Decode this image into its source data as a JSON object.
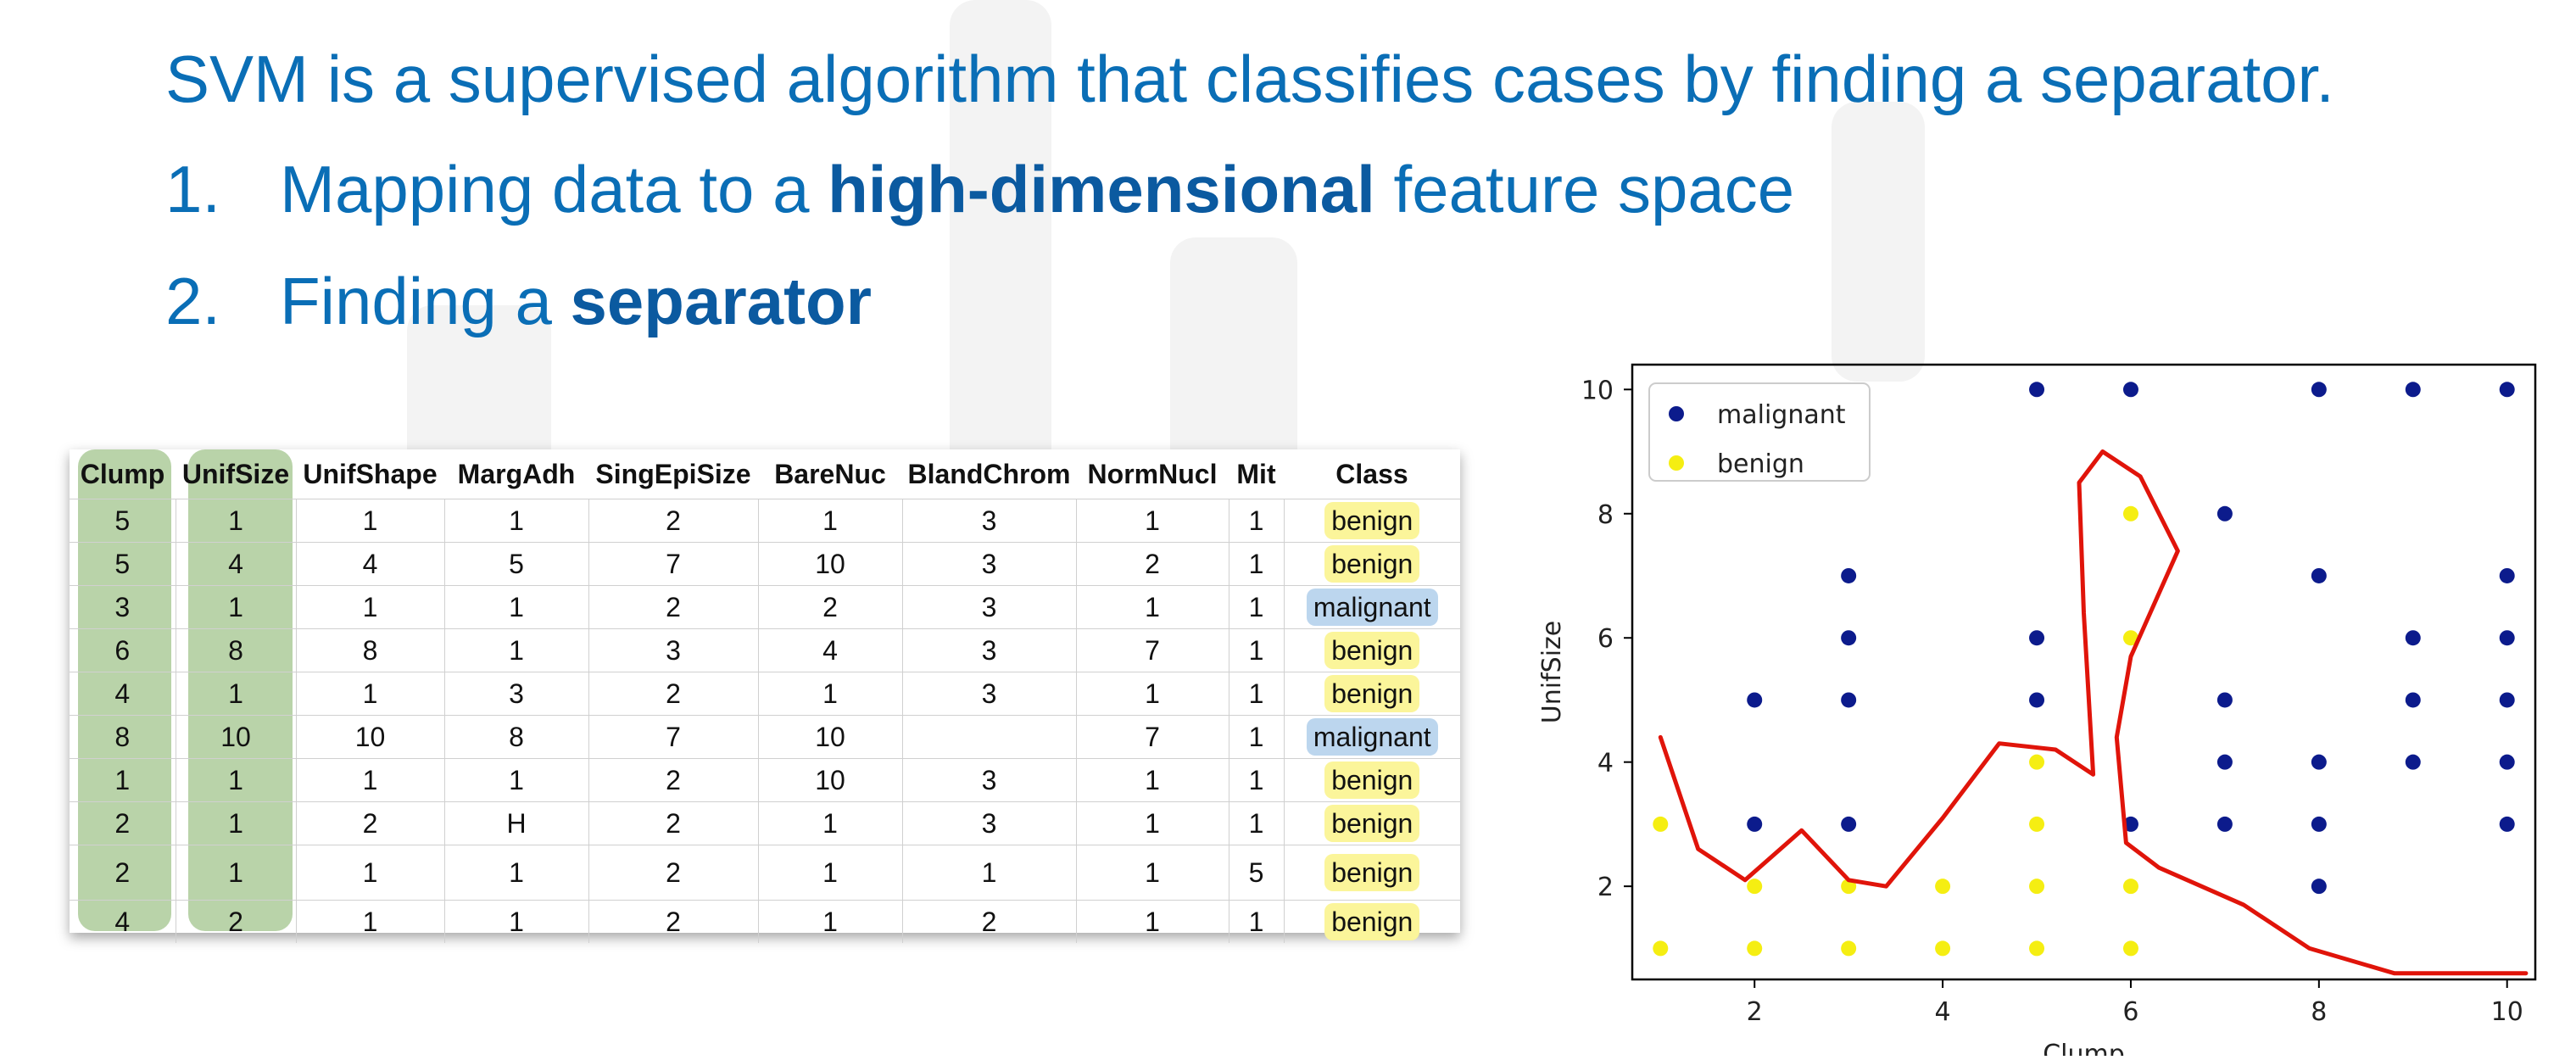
{
  "slide": {
    "headline": "SVM is a supervised algorithm that classifies cases by finding a separator.",
    "steps": [
      {
        "number": "1.",
        "before": "Mapping data to a ",
        "bold": "high-dimensional",
        "after": " feature space"
      },
      {
        "number": "2.",
        "before": "Finding a ",
        "bold": "separator",
        "after": ""
      }
    ]
  },
  "table": {
    "headers": [
      "Clump",
      "UnifSize",
      "UnifShape",
      "MargAdh",
      "SingEpiSize",
      "BareNuc",
      "BlandChrom",
      "NormNucl",
      "Mit",
      "Class"
    ],
    "rows": [
      [
        "5",
        "1",
        "1",
        "1",
        "2",
        "1",
        "3",
        "1",
        "1",
        "benign"
      ],
      [
        "5",
        "4",
        "4",
        "5",
        "7",
        "10",
        "3",
        "2",
        "1",
        "benign"
      ],
      [
        "3",
        "1",
        "1",
        "1",
        "2",
        "2",
        "3",
        "1",
        "1",
        "malignant"
      ],
      [
        "6",
        "8",
        "8",
        "1",
        "3",
        "4",
        "3",
        "7",
        "1",
        "benign"
      ],
      [
        "4",
        "1",
        "1",
        "3",
        "2",
        "1",
        "3",
        "1",
        "1",
        "benign"
      ],
      [
        "8",
        "10",
        "10",
        "8",
        "7",
        "10",
        "",
        "7",
        "1",
        "malignant"
      ],
      [
        "1",
        "1",
        "1",
        "1",
        "2",
        "10",
        "3",
        "1",
        "1",
        "benign"
      ],
      [
        "2",
        "1",
        "2",
        "H",
        "2",
        "1",
        "3",
        "1",
        "1",
        "benign"
      ],
      [
        "2",
        "1",
        "1",
        "1",
        "2",
        "1",
        "1",
        "1",
        "5",
        "benign"
      ],
      [
        "4",
        "2",
        "1",
        "1",
        "2",
        "1",
        "2",
        "1",
        "1",
        "benign"
      ]
    ]
  },
  "colors": {
    "title_blue": "#0a6eb6",
    "benign_fill": "#fbf59a",
    "malignant_fill": "#bcd6ee",
    "highlight_green": "#b9d3a9",
    "malignant_point": "#0c1b8c",
    "benign_point": "#f5ee12",
    "separator": "#e0140a"
  },
  "chart_data": {
    "type": "scatter",
    "xlabel": "Clump",
    "ylabel": "UnifSize",
    "xlim": [
      0.7,
      10.3
    ],
    "ylim": [
      0.5,
      10.4
    ],
    "xticks": [
      2,
      4,
      6,
      8,
      10
    ],
    "yticks": [
      2,
      4,
      6,
      8,
      10
    ],
    "grid": false,
    "legend_position": "top-left",
    "series": [
      {
        "name": "malignant",
        "color": "#0c1b8c",
        "points": [
          [
            5,
            10
          ],
          [
            6,
            10
          ],
          [
            8,
            10
          ],
          [
            9,
            10
          ],
          [
            10,
            10
          ],
          [
            7,
            8
          ],
          [
            3,
            7
          ],
          [
            8,
            7
          ],
          [
            10,
            7
          ],
          [
            3,
            6
          ],
          [
            5,
            6
          ],
          [
            9,
            6
          ],
          [
            10,
            6
          ],
          [
            2,
            5
          ],
          [
            3,
            5
          ],
          [
            5,
            5
          ],
          [
            7,
            5
          ],
          [
            9,
            5
          ],
          [
            10,
            5
          ],
          [
            7,
            4
          ],
          [
            8,
            4
          ],
          [
            9,
            4
          ],
          [
            10,
            4
          ],
          [
            2,
            3
          ],
          [
            3,
            3
          ],
          [
            6,
            3
          ],
          [
            7,
            3
          ],
          [
            8,
            3
          ],
          [
            10,
            3
          ],
          [
            8,
            2
          ]
        ]
      },
      {
        "name": "benign",
        "color": "#f5ee12",
        "points": [
          [
            6,
            8
          ],
          [
            6,
            6
          ],
          [
            5,
            4
          ],
          [
            1,
            3
          ],
          [
            5,
            3
          ],
          [
            2,
            2
          ],
          [
            3,
            2
          ],
          [
            4,
            2
          ],
          [
            5,
            2
          ],
          [
            6,
            2
          ],
          [
            1,
            1
          ],
          [
            2,
            1
          ],
          [
            3,
            1
          ],
          [
            4,
            1
          ],
          [
            5,
            1
          ],
          [
            6,
            1
          ]
        ]
      }
    ],
    "separator_curve": [
      [
        1.0,
        4.4
      ],
      [
        1.4,
        2.6
      ],
      [
        1.9,
        2.1
      ],
      [
        2.5,
        2.9
      ],
      [
        3.0,
        2.1
      ],
      [
        3.4,
        2.0
      ],
      [
        4.0,
        3.1
      ],
      [
        4.6,
        4.3
      ],
      [
        5.2,
        4.2
      ],
      [
        5.6,
        3.8
      ],
      [
        5.5,
        6.4
      ],
      [
        5.45,
        8.5
      ],
      [
        5.7,
        9.0
      ],
      [
        6.1,
        8.6
      ],
      [
        6.5,
        7.4
      ],
      [
        6.0,
        5.7
      ],
      [
        5.85,
        4.4
      ],
      [
        5.95,
        2.7
      ],
      [
        6.3,
        2.3
      ],
      [
        7.2,
        1.7
      ],
      [
        7.9,
        1.0
      ],
      [
        8.8,
        0.6
      ],
      [
        9.5,
        0.6
      ],
      [
        10.2,
        0.6
      ]
    ]
  }
}
